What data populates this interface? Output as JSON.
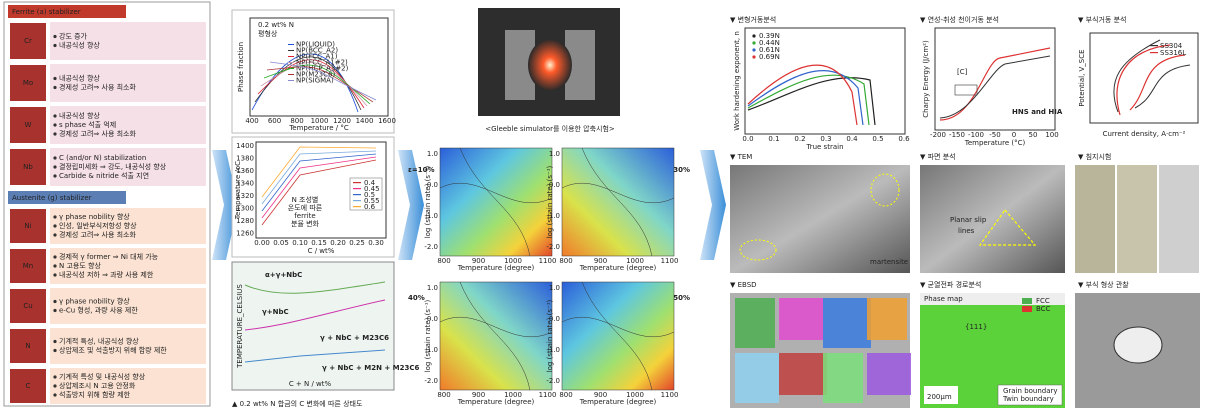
{
  "left_panel": {
    "ferrite_header": "Ferrite (a) stabilizer",
    "ferrite_elements": [
      {
        "symbol": "Cr",
        "notes": [
          "강도 증가",
          "내공식성 향상"
        ]
      },
      {
        "symbol": "Mo",
        "notes": [
          "내공식성 향상",
          "경제성 고려⇒ 사용 최소화"
        ]
      },
      {
        "symbol": "W",
        "notes": [
          "내공식성 향상",
          "s phase 석출 억제",
          "경제성 고려⇒ 사용 최소화"
        ]
      },
      {
        "symbol": "Nb",
        "notes": [
          "C (and/or N) stabilization",
          "결정립미세화 ⇒ 강도, 내공식성 향상",
          "Carbide & nitride 석출 지연"
        ]
      }
    ],
    "austenite_header": "Austenite (g) stabilizer",
    "austenite_elements": [
      {
        "symbol": "Ni",
        "notes": [
          "γ phase nobility 향상",
          "인성, 일반부식저항성 향상",
          "경제성 고려⇒ 사용 최소화"
        ]
      },
      {
        "symbol": "Mn",
        "notes": [
          "경제적 γ former ⇒ Ni 대체 가능",
          "N 고용도 향상",
          "내공식성 저하 ⇒ 과량 사용 제한"
        ]
      },
      {
        "symbol": "Cu",
        "notes": [
          "γ phase nobility 향상",
          "e-Cu 형성, 과량 사용 제한"
        ]
      },
      {
        "symbol": "N",
        "notes": [
          "기계적 특성, 내공식성 향상",
          "상압제조 및 석출방지 위해 함량 제한"
        ]
      },
      {
        "symbol": "C",
        "notes": [
          "기계적 특성 및 내공식성 향상",
          "상압제조시 N 고용 안정화",
          "석출방지 위해 함량 제한"
        ]
      }
    ]
  },
  "phase_fraction_plot": {
    "title_lines": [
      "0.2 wt% N",
      "평형상"
    ],
    "x_label": "Temperature / °C",
    "y_label": "Phase fraction",
    "xticks": [
      "400",
      "600",
      "800",
      "1000",
      "1200",
      "1400",
      "1600"
    ],
    "legend": [
      "NP(LIQUID)",
      "NP(BCC_A2)",
      "NP(FCC_A1)",
      "NP(FCC_A1#2)",
      "NP(HCP_A3#2)",
      "NP(M23C6)",
      "NP(SIGMA)"
    ]
  },
  "ferrite_plot": {
    "annotation_lines": [
      "N 조성별",
      "온도에 따른",
      "ferrite",
      "분율 변화"
    ],
    "x_label": "C / wt%",
    "y_label": "Temperature /oC",
    "xticks": [
      "0.00",
      "0.05",
      "0.10",
      "0.15",
      "0.20",
      "0.25",
      "0.30"
    ],
    "yticks": [
      "1400",
      "1380",
      "1360",
      "1340",
      "1320",
      "1300",
      "1280",
      "1260"
    ],
    "legend": [
      "0.4",
      "0.45",
      "0.5",
      "0.55",
      "0.6"
    ]
  },
  "phase_diagram": {
    "regions": [
      "α+γ+NbC",
      "γ+NbC",
      "γ + NbC + M23C6",
      "γ + NbC + M2N + M23C6"
    ],
    "x_label": "C + N / wt%",
    "y_label": "TEMPERATURE_CELSIUS",
    "caption": "▲ 0.2 wt% N 합금의 C 변화에 따른 상태도"
  },
  "gleeble": {
    "caption": "<Gleeble simulator를 이용한 압축시험>"
  },
  "processing_maps": {
    "strains": [
      "ε=10%",
      "30%",
      "40%",
      "50%"
    ],
    "x_label": "Temperature (degree)",
    "y_label": "log (strain rate) (s⁻¹)",
    "xticks": [
      "800",
      "900",
      "1000",
      "1100"
    ],
    "yticks": [
      "1.0",
      "0.0",
      "-1.0",
      "-2.0"
    ]
  },
  "analyses": {
    "deformation": {
      "title": "▼ 변형거동분석",
      "x_label": "True strain",
      "y_label": "Work hardening exponent, n",
      "legend": [
        "0.39N",
        "0.44N",
        "0.61N",
        "0.69N"
      ],
      "xticks": [
        "0.0",
        "0.1",
        "0.2",
        "0.3",
        "0.4",
        "0.5",
        "0.6"
      ]
    },
    "dbtt": {
      "title": "▼ 연성-취성 천이거동 분석",
      "x_label": "Temperature (°C)",
      "y_label": "Charpy Energy (J/cm²)",
      "annotations": [
        "[C]",
        "HNS and HIA"
      ],
      "xticks": [
        "-200",
        "-150",
        "-100",
        "-50",
        "0",
        "50",
        "100"
      ]
    },
    "corrosion": {
      "title": "▼ 부식거동 분석",
      "legend": [
        "SS304",
        "SS316L"
      ],
      "x_label": "Current density, A·cm⁻²",
      "y_label": "Potential, V_SCE"
    },
    "tem": {
      "title": "▼ TEM",
      "annotation": "martensite"
    },
    "fracture": {
      "title": "▼ 파면 분석",
      "annotation_lines": [
        "Planar slip",
        "lines"
      ]
    },
    "immersion": {
      "title": "▼ 침지시험"
    },
    "ebsd": {
      "title": "▼ EBSD"
    },
    "crack": {
      "title": "▼ 균열전파 경로분석",
      "panel": "Phase map",
      "legend": [
        "FCC",
        "BCC"
      ],
      "scale": "200μm",
      "plane": "{111}",
      "boundaries": [
        "Grain boundary",
        "Twin boundary"
      ]
    },
    "corrosion_shape": {
      "title": "▼ 부식 형상 관찰"
    }
  }
}
